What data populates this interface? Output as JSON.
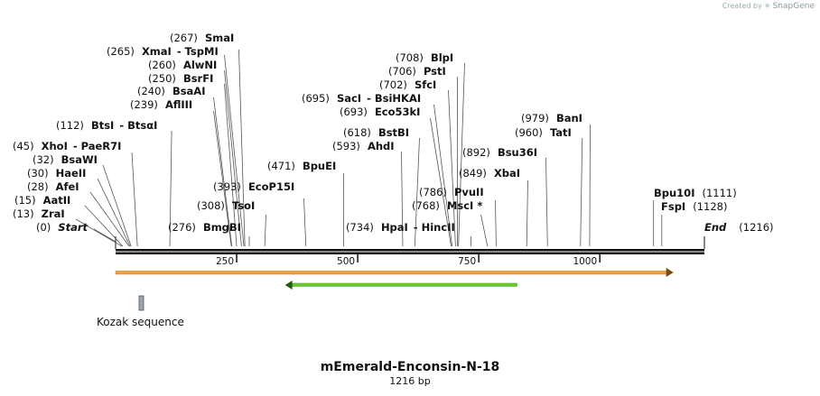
{
  "credit": {
    "prefix": "Created by",
    "brand": "SnapGene"
  },
  "title": "mEmerald-Enconsin-N-18",
  "subtitle": "1216 bp",
  "map": {
    "length": 1216,
    "ticks": [
      250,
      500,
      750,
      1000
    ],
    "ends": [
      {
        "pos": "(0)",
        "name": "Start"
      },
      {
        "pos": "(1216)",
        "name": "End"
      }
    ],
    "sites": [
      {
        "pos": "(267)",
        "name": "SmaI"
      },
      {
        "pos": "(265)",
        "name": "XmaI",
        "name2": "TspMI"
      },
      {
        "pos": "(260)",
        "name": "AlwNI"
      },
      {
        "pos": "(250)",
        "name": "BsrFI"
      },
      {
        "pos": "(240)",
        "name": "BsaAI"
      },
      {
        "pos": "(239)",
        "name": "AflIII"
      },
      {
        "pos": "(112)",
        "name": "BtsI",
        "name2": "BtsαI"
      },
      {
        "pos": "(45)",
        "name": "XhoI",
        "name2": "PaeR7I"
      },
      {
        "pos": "(32)",
        "name": "BsaWI"
      },
      {
        "pos": "(30)",
        "name": "HaeII"
      },
      {
        "pos": "(28)",
        "name": "AfeI"
      },
      {
        "pos": "(15)",
        "name": "AatII"
      },
      {
        "pos": "(13)",
        "name": "ZraI"
      },
      {
        "pos": "(276)",
        "name": "BmgBI"
      },
      {
        "pos": "(308)",
        "name": "TsoI"
      },
      {
        "pos": "(393)",
        "name": "EcoP15I"
      },
      {
        "pos": "(471)",
        "name": "BpuEI"
      },
      {
        "pos": "(708)",
        "name": "BlpI"
      },
      {
        "pos": "(706)",
        "name": "PstI"
      },
      {
        "pos": "(702)",
        "name": "SfcI"
      },
      {
        "pos": "(695)",
        "name": "SacI",
        "name2": "BsiHKAI"
      },
      {
        "pos": "(693)",
        "name": "Eco53kI"
      },
      {
        "pos": "(618)",
        "name": "BstBI"
      },
      {
        "pos": "(593)",
        "name": "AhdI"
      },
      {
        "pos": "(734)",
        "name": "HpaI",
        "name2": "HincII"
      },
      {
        "pos": "(768)",
        "name": "MscI",
        "star": "*"
      },
      {
        "pos": "(786)",
        "name": "PvuII"
      },
      {
        "pos": "(849)",
        "name": "XbaI"
      },
      {
        "pos": "(892)",
        "name": "Bsu36I"
      },
      {
        "pos": "(979)",
        "name": "BanI"
      },
      {
        "pos": "(960)",
        "name": "TatI"
      },
      {
        "pos": "(1111)",
        "name": "Bpu10I"
      },
      {
        "pos": "(1128)",
        "name": "FspI"
      }
    ],
    "features": [
      {
        "name": "mEmerald",
        "color": "#f0a040",
        "start": 0,
        "end": 1152,
        "strand": "forward"
      },
      {
        "name": "Enconsin",
        "color": "#66cc33",
        "start": 350,
        "end": 829,
        "strand": "reverse"
      },
      {
        "name": "Kozak sequence",
        "color": "#a0a4b8"
      }
    ]
  },
  "colors": {
    "backbone": "#111111",
    "leader": "#555555"
  }
}
